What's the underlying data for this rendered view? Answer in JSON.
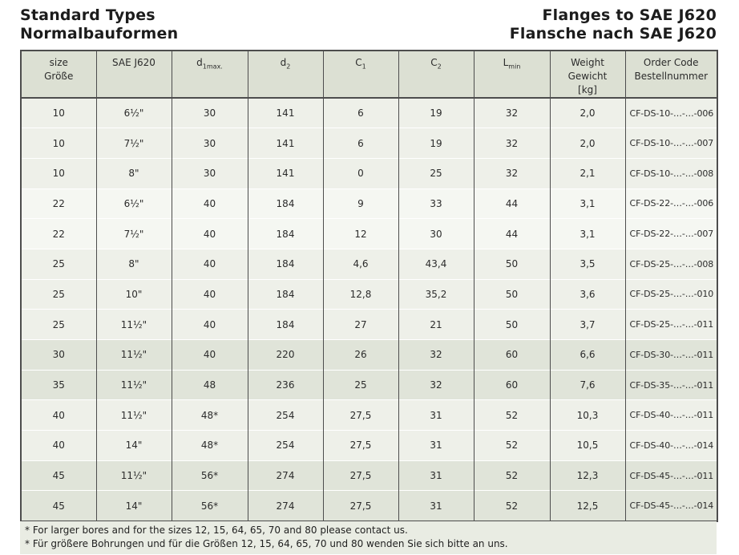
{
  "titles": {
    "left_line1": "Standard Types",
    "left_line2": "Normalbauformen",
    "right_line1": "Flanges to SAE J620",
    "right_line2": "Flansche nach SAE J620"
  },
  "colors": {
    "header_bg": "#dce0d3",
    "row_light": "#eef0e9",
    "row_lighter": "#f5f7f2",
    "row_dark": "#e0e4d9",
    "footnote_bg": "#e9ece3",
    "border": "#4d4d4d"
  },
  "table": {
    "column_keys": [
      "size",
      "sae-j620",
      "d1max",
      "d2",
      "c1",
      "c2",
      "lmin",
      "weight",
      "order-code"
    ],
    "headers": [
      {
        "line1": "size",
        "line2": "Größe"
      },
      {
        "line1": "SAE J620"
      },
      {
        "main": "d",
        "sub": "1max."
      },
      {
        "main": "d",
        "sub": "2"
      },
      {
        "main": "C",
        "sub": "1"
      },
      {
        "main": "C",
        "sub": "2"
      },
      {
        "main": "L",
        "sub": "min"
      },
      {
        "line1": "Weight",
        "line2": "Gewicht",
        "line3": "[kg]"
      },
      {
        "line1": "Order Code",
        "line2": "Bestellnummer"
      }
    ],
    "rows": [
      {
        "shade": "a",
        "cells": [
          "10",
          "6½\"",
          "30",
          "141",
          "6",
          "19",
          "32",
          "2,0",
          "CF-DS-10-…-…-006"
        ]
      },
      {
        "shade": "a",
        "cells": [
          "10",
          "7½\"",
          "30",
          "141",
          "6",
          "19",
          "32",
          "2,0",
          "CF-DS-10-…-…-007"
        ]
      },
      {
        "shade": "a",
        "cells": [
          "10",
          "8\"",
          "30",
          "141",
          "0",
          "25",
          "32",
          "2,1",
          "CF-DS-10-…-…-008"
        ]
      },
      {
        "shade": "b",
        "cells": [
          "22",
          "6½\"",
          "40",
          "184",
          "9",
          "33",
          "44",
          "3,1",
          "CF-DS-22-…-…-006"
        ]
      },
      {
        "shade": "b",
        "cells": [
          "22",
          "7½\"",
          "40",
          "184",
          "12",
          "30",
          "44",
          "3,1",
          "CF-DS-22-…-…-007"
        ]
      },
      {
        "shade": "a",
        "cells": [
          "25",
          "8\"",
          "40",
          "184",
          "4,6",
          "43,4",
          "50",
          "3,5",
          "CF-DS-25-…-…-008"
        ]
      },
      {
        "shade": "a",
        "cells": [
          "25",
          "10\"",
          "40",
          "184",
          "12,8",
          "35,2",
          "50",
          "3,6",
          "CF-DS-25-…-…-010"
        ]
      },
      {
        "shade": "a",
        "cells": [
          "25",
          "11½\"",
          "40",
          "184",
          "27",
          "21",
          "50",
          "3,7",
          "CF-DS-25-…-…-011"
        ]
      },
      {
        "shade": "c",
        "cells": [
          "30",
          "11½\"",
          "40",
          "220",
          "26",
          "32",
          "60",
          "6,6",
          "CF-DS-30-…-…-011"
        ]
      },
      {
        "shade": "c",
        "cells": [
          "35",
          "11½\"",
          "48",
          "236",
          "25",
          "32",
          "60",
          "7,6",
          "CF-DS-35-…-…-011"
        ]
      },
      {
        "shade": "a",
        "cells": [
          "40",
          "11½\"",
          "48*",
          "254",
          "27,5",
          "31",
          "52",
          "10,3",
          "CF-DS-40-…-…-011"
        ]
      },
      {
        "shade": "a",
        "cells": [
          "40",
          "14\"",
          "48*",
          "254",
          "27,5",
          "31",
          "52",
          "10,5",
          "CF-DS-40-…-…-014"
        ]
      },
      {
        "shade": "c",
        "cells": [
          "45",
          "11½\"",
          "56*",
          "274",
          "27,5",
          "31",
          "52",
          "12,3",
          "CF-DS-45-…-…-011"
        ]
      },
      {
        "shade": "c",
        "cells": [
          "45",
          "14\"",
          "56*",
          "274",
          "27,5",
          "31",
          "52",
          "12,5",
          "CF-DS-45-…-…-014"
        ]
      }
    ]
  },
  "footnotes": [
    "* For larger bores and for the sizes 12, 15, 64, 65, 70 and 80 please contact us.",
    "* Für größere Bohrungen und für die Größen 12, 15, 64, 65, 70 und 80 wenden Sie sich bitte an uns."
  ]
}
